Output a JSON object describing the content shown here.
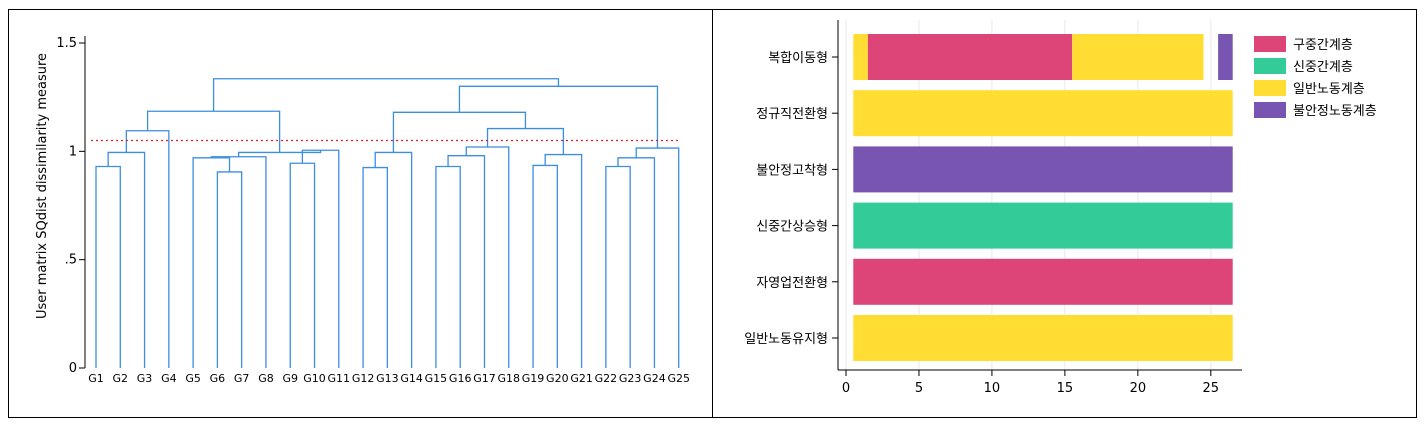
{
  "colors": {
    "dendrogram": "#3b8ee0",
    "cutline": "#e02020",
    "구중간계층": "#dd4477",
    "신중간계층": "#33cc99",
    "일반노동계층": "#ffdd33",
    "불안정노동계층": "#7755b0"
  },
  "chart_data": [
    {
      "type": "dendrogram",
      "ylabel": "User matrix SQdist dissimilarity measure",
      "ylim": [
        0,
        1.5
      ],
      "yticks": [
        {
          "value": 0,
          "label": "0"
        },
        {
          "value": 0.5,
          "label": ".5"
        },
        {
          "value": 1,
          "label": "1"
        },
        {
          "value": 1.5,
          "label": "1.5"
        }
      ],
      "leaves": [
        "G1",
        "G2",
        "G3",
        "G4",
        "G5",
        "G6",
        "G7",
        "G8",
        "G9",
        "G10",
        "G11",
        "G12",
        "G13",
        "G14",
        "G15",
        "G16",
        "G17",
        "G18",
        "G19",
        "G20",
        "G21",
        "G22",
        "G23",
        "G24",
        "G25"
      ],
      "cut_height": 1.05,
      "merges": [
        {
          "left": "G1",
          "right": "G2",
          "height": 0.93
        },
        {
          "left": 0,
          "right": "G3",
          "height": 0.995
        },
        {
          "left": 1,
          "right": "G4",
          "height": 1.095
        },
        {
          "left": "G6",
          "right": "G7",
          "height": 0.905
        },
        {
          "left": "G5",
          "right": 3,
          "height": 0.97
        },
        {
          "left": 4,
          "right": "G8",
          "height": 0.975
        },
        {
          "left": "G9",
          "right": "G10",
          "height": 0.945
        },
        {
          "left": 6,
          "right": "G11",
          "height": 1.005
        },
        {
          "left": 5,
          "right": 7,
          "height": 0.995
        },
        {
          "left": 2,
          "right": 8,
          "height": 1.185
        },
        {
          "left": "G12",
          "right": "G13",
          "height": 0.925
        },
        {
          "left": 10,
          "right": "G14",
          "height": 0.995
        },
        {
          "left": "G15",
          "right": "G16",
          "height": 0.93
        },
        {
          "left": 12,
          "right": "G17",
          "height": 0.98
        },
        {
          "left": 13,
          "right": "G18",
          "height": 1.02
        },
        {
          "left": "G19",
          "right": "G20",
          "height": 0.935
        },
        {
          "left": 15,
          "right": "G21",
          "height": 0.985
        },
        {
          "left": 14,
          "right": 16,
          "height": 1.105
        },
        {
          "left": 11,
          "right": 17,
          "height": 1.18
        },
        {
          "left": "G22",
          "right": "G23",
          "height": 0.93
        },
        {
          "left": 19,
          "right": "G24",
          "height": 0.97
        },
        {
          "left": 20,
          "right": "G25",
          "height": 1.015
        },
        {
          "left": 18,
          "right": 21,
          "height": 1.3
        },
        {
          "left": 9,
          "right": 22,
          "height": 1.335
        }
      ]
    },
    {
      "type": "bar",
      "orientation": "horizontal",
      "stacked": true,
      "categories": [
        "복합이동형",
        "정규직전환형",
        "불안정고착형",
        "신중간상승형",
        "자영업전환형",
        "일반노동유지형"
      ],
      "xlim": [
        0,
        27
      ],
      "xticks": [
        0,
        5,
        10,
        15,
        20,
        25
      ],
      "legend_position": "right",
      "legend": [
        "구중간계층",
        "신중간계층",
        "일반노동계층",
        "불안정노동계층"
      ],
      "segments": [
        [
          {
            "series": "일반노동계층",
            "start": 0.5,
            "end": 1.5
          },
          {
            "series": "구중간계층",
            "start": 1.5,
            "end": 15.5
          },
          {
            "series": "일반노동계층",
            "start": 15.5,
            "end": 24.5
          },
          {
            "series": "불안정노동계층",
            "start": 25.5,
            "end": 26.5
          }
        ],
        [
          {
            "series": "일반노동계층",
            "start": 0.5,
            "end": 26.5
          }
        ],
        [
          {
            "series": "불안정노동계층",
            "start": 0.5,
            "end": 26.5
          }
        ],
        [
          {
            "series": "신중간계층",
            "start": 0.5,
            "end": 26.5
          }
        ],
        [
          {
            "series": "구중간계층",
            "start": 0.5,
            "end": 26.5
          }
        ],
        [
          {
            "series": "일반노동계층",
            "start": 0.5,
            "end": 26.5
          }
        ]
      ]
    }
  ]
}
